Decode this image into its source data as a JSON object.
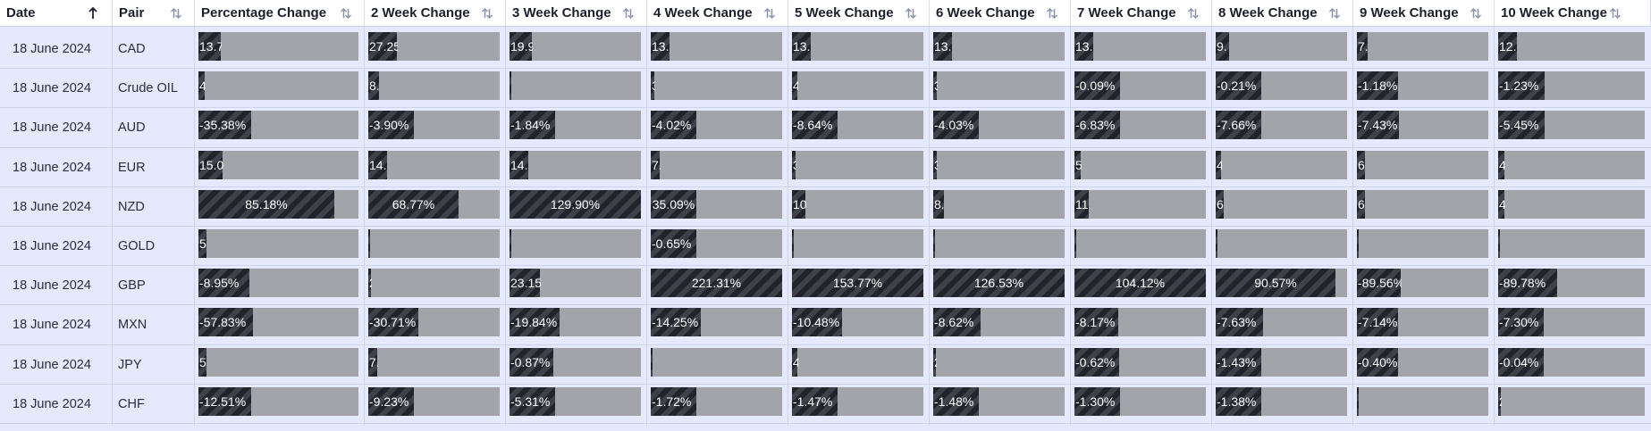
{
  "columns": [
    {
      "key": "date",
      "label": "Date",
      "sort": "asc"
    },
    {
      "key": "pair",
      "label": "Pair",
      "sort": "none"
    },
    {
      "key": "pct",
      "label": "Percentage Change",
      "sort": "none"
    },
    {
      "key": "w2",
      "label": "2 Week Change",
      "sort": "none"
    },
    {
      "key": "w3",
      "label": "3 Week Change",
      "sort": "none"
    },
    {
      "key": "w4",
      "label": "4 Week Change",
      "sort": "none"
    },
    {
      "key": "w5",
      "label": "5 Week Change",
      "sort": "none"
    },
    {
      "key": "w6",
      "label": "6 Week Change",
      "sort": "none"
    },
    {
      "key": "w7",
      "label": "7 Week Change",
      "sort": "none"
    },
    {
      "key": "w8",
      "label": "8 Week Change",
      "sort": "none"
    },
    {
      "key": "w9",
      "label": "9 Week Change",
      "sort": "none"
    },
    {
      "key": "w10",
      "label": "10 Week Change",
      "sort": "none"
    }
  ],
  "icons": {
    "sort_asc": "arrow-up-icon",
    "sort_none": "sort-icon"
  },
  "colors": {
    "bar_track": "#a2a4aa",
    "bar_fill_dark": "#22242b",
    "bar_fill_stripe": "#3e414a",
    "row_background": "#e4e9fb"
  },
  "rows": [
    {
      "date": "18 June 2024",
      "pair": "CAD",
      "cells": [
        {
          "text": "13.7",
          "fill": 0.14
        },
        {
          "text": "27.25",
          "fill": 0.22
        },
        {
          "text": "19.9",
          "fill": 0.17
        },
        {
          "text": "13.",
          "fill": 0.14
        },
        {
          "text": "13.",
          "fill": 0.14
        },
        {
          "text": "13.",
          "fill": 0.14
        },
        {
          "text": "13.",
          "fill": 0.14
        },
        {
          "text": "9.",
          "fill": 0.1
        },
        {
          "text": "7.",
          "fill": 0.08
        },
        {
          "text": "12.",
          "fill": 0.13
        }
      ]
    },
    {
      "date": "18 June 2024",
      "pair": "Crude OIL",
      "cells": [
        {
          "text": "4",
          "fill": 0.04
        },
        {
          "text": "8.",
          "fill": 0.08
        },
        {
          "text": "",
          "fill": 0.01
        },
        {
          "text": "3",
          "fill": 0.03
        },
        {
          "text": "4",
          "fill": 0.04
        },
        {
          "text": "3",
          "fill": 0.03
        },
        {
          "text": "-0.09%",
          "fill": 0.35
        },
        {
          "text": "-0.21%",
          "fill": 0.35
        },
        {
          "text": "-1.18%",
          "fill": 0.31
        },
        {
          "text": "-1.23%",
          "fill": 0.32
        }
      ]
    },
    {
      "date": "18 June 2024",
      "pair": "AUD",
      "cells": [
        {
          "text": "-35.38%",
          "fill": 0.33
        },
        {
          "text": "-3.90%",
          "fill": 0.35
        },
        {
          "text": "-1.84%",
          "fill": 0.35
        },
        {
          "text": "-4.02%",
          "fill": 0.35
        },
        {
          "text": "-8.64%",
          "fill": 0.35
        },
        {
          "text": "-4.03%",
          "fill": 0.35
        },
        {
          "text": "-6.83%",
          "fill": 0.35
        },
        {
          "text": "-7.66%",
          "fill": 0.35
        },
        {
          "text": "-7.43%",
          "fill": 0.32
        },
        {
          "text": "-5.45%",
          "fill": 0.32
        }
      ]
    },
    {
      "date": "18 June 2024",
      "pair": "EUR",
      "cells": [
        {
          "text": "15.0",
          "fill": 0.15
        },
        {
          "text": "14.",
          "fill": 0.14
        },
        {
          "text": "14.",
          "fill": 0.14
        },
        {
          "text": "7.",
          "fill": 0.07
        },
        {
          "text": "3",
          "fill": 0.03
        },
        {
          "text": "3",
          "fill": 0.03
        },
        {
          "text": "5",
          "fill": 0.05
        },
        {
          "text": "4",
          "fill": 0.04
        },
        {
          "text": "6",
          "fill": 0.06
        },
        {
          "text": "4",
          "fill": 0.04
        }
      ]
    },
    {
      "date": "18 June 2024",
      "pair": "NZD",
      "cells": [
        {
          "text": "85.18%",
          "fill": 0.85,
          "center": true
        },
        {
          "text": "68.77%",
          "fill": 0.69,
          "center": true
        },
        {
          "text": "129.90%",
          "fill": 1.0,
          "center": true
        },
        {
          "text": "35.09%",
          "fill": 0.35,
          "center": true
        },
        {
          "text": "10",
          "fill": 0.1
        },
        {
          "text": "8.",
          "fill": 0.08
        },
        {
          "text": "11.",
          "fill": 0.11
        },
        {
          "text": "6",
          "fill": 0.06
        },
        {
          "text": "6",
          "fill": 0.06
        },
        {
          "text": "4",
          "fill": 0.04
        }
      ]
    },
    {
      "date": "18 June 2024",
      "pair": "GOLD",
      "cells": [
        {
          "text": "5",
          "fill": 0.05
        },
        {
          "text": "",
          "fill": 0.01
        },
        {
          "text": "",
          "fill": 0.01
        },
        {
          "text": "-0.65%",
          "fill": 0.35
        },
        {
          "text": "",
          "fill": 0.01
        },
        {
          "text": "",
          "fill": 0.01
        },
        {
          "text": "",
          "fill": 0.01
        },
        {
          "text": "",
          "fill": 0.01
        },
        {
          "text": "",
          "fill": 0.01
        },
        {
          "text": "",
          "fill": 0.01
        }
      ]
    },
    {
      "date": "18 June 2024",
      "pair": "GBP",
      "cells": [
        {
          "text": "-8.95%",
          "fill": 0.32
        },
        {
          "text": "2",
          "fill": 0.02
        },
        {
          "text": "23.15",
          "fill": 0.23
        },
        {
          "text": "221.31%",
          "fill": 1.0,
          "center": true
        },
        {
          "text": "153.77%",
          "fill": 1.0,
          "center": true
        },
        {
          "text": "126.53%",
          "fill": 1.0,
          "center": true
        },
        {
          "text": "104.12%",
          "fill": 1.0,
          "center": true
        },
        {
          "text": "90.57%",
          "fill": 0.91,
          "center": true
        },
        {
          "text": "-89.56%",
          "fill": 0.33
        },
        {
          "text": "-89.78%",
          "fill": 0.4
        }
      ]
    },
    {
      "date": "18 June 2024",
      "pair": "MXN",
      "cells": [
        {
          "text": "-57.83%",
          "fill": 0.34
        },
        {
          "text": "-30.71%",
          "fill": 0.38
        },
        {
          "text": "-19.84%",
          "fill": 0.38
        },
        {
          "text": "-14.25%",
          "fill": 0.38
        },
        {
          "text": "-10.48%",
          "fill": 0.38
        },
        {
          "text": "-8.62%",
          "fill": 0.36
        },
        {
          "text": "-8.17%",
          "fill": 0.33
        },
        {
          "text": "-7.63%",
          "fill": 0.36
        },
        {
          "text": "-7.14%",
          "fill": 0.31
        },
        {
          "text": "-7.30%",
          "fill": 0.31
        }
      ]
    },
    {
      "date": "18 June 2024",
      "pair": "JPY",
      "cells": [
        {
          "text": "5",
          "fill": 0.05
        },
        {
          "text": "7.",
          "fill": 0.07
        },
        {
          "text": "-0.87%",
          "fill": 0.33
        },
        {
          "text": "",
          "fill": 0.01
        },
        {
          "text": "4",
          "fill": 0.04
        },
        {
          "text": "2",
          "fill": 0.02
        },
        {
          "text": "-0.62%",
          "fill": 0.34
        },
        {
          "text": "-1.43%",
          "fill": 0.35
        },
        {
          "text": "-0.40%",
          "fill": 0.31
        },
        {
          "text": "-0.04%",
          "fill": 0.31
        }
      ]
    },
    {
      "date": "18 June 2024",
      "pair": "CHF",
      "cells": [
        {
          "text": "-12.51%",
          "fill": 0.33
        },
        {
          "text": "-9.23%",
          "fill": 0.35
        },
        {
          "text": "-5.31%",
          "fill": 0.35
        },
        {
          "text": "-1.72%",
          "fill": 0.35
        },
        {
          "text": "-1.47%",
          "fill": 0.35
        },
        {
          "text": "-1.48%",
          "fill": 0.35
        },
        {
          "text": "-1.30%",
          "fill": 0.35
        },
        {
          "text": "-1.38%",
          "fill": 0.35
        },
        {
          "text": "",
          "fill": 0.01
        },
        {
          "text": "2",
          "fill": 0.02
        }
      ]
    }
  ]
}
